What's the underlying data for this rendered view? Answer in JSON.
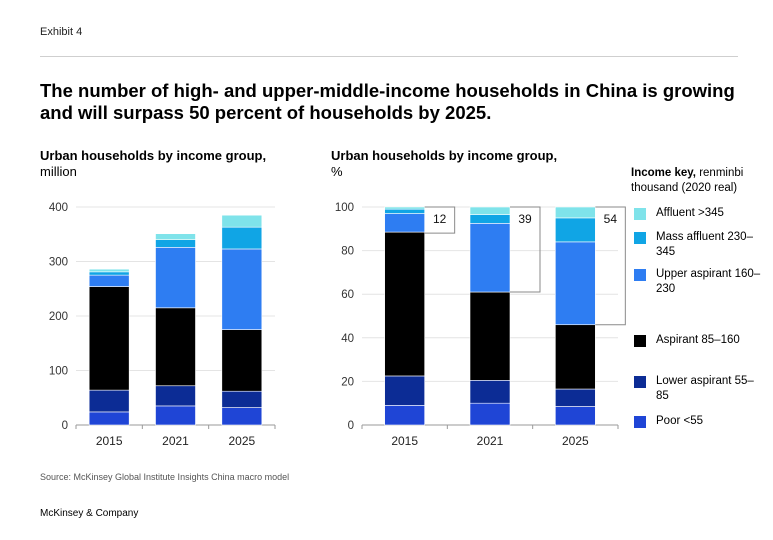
{
  "exhibit_label": "Exhibit 4",
  "headline": "The number of high- and upper-middle-income households in China is growing and will surpass 50 percent of households by 2025.",
  "left_chart_title_bold": "Urban households by income group,",
  "left_chart_title_unit": "million",
  "right_chart_title_bold": "Urban households by income group,",
  "right_chart_title_unit": "%",
  "legend": {
    "title_bold": "Income key,",
    "title_rest": "renminbi thousand (2020 real)",
    "items": [
      {
        "key": "affluent",
        "label": "Affluent >345",
        "color": "#7fe3ea"
      },
      {
        "key": "mass_affluent",
        "label": "Mass affluent 230–345",
        "color": "#10a5e5"
      },
      {
        "key": "upper_aspirant",
        "label": "Upper aspirant 160–230",
        "color": "#2e7df2"
      },
      {
        "key": "aspirant",
        "label": "Aspirant 85–160",
        "color": "#000000"
      },
      {
        "key": "lower_aspirant",
        "label": "Lower aspirant 55–85",
        "color": "#0c2c95"
      },
      {
        "key": "poor",
        "label": "Poor <55",
        "color": "#1f45d6"
      }
    ]
  },
  "chart_data": [
    {
      "type": "bar",
      "stacked": true,
      "title": "Urban households by income group, million",
      "categories": [
        "2015",
        "2021",
        "2025"
      ],
      "ylim": [
        0,
        400
      ],
      "yticks": [
        0,
        100,
        200,
        300,
        400
      ],
      "series": [
        {
          "name": "Poor <55",
          "values": [
            24,
            35,
            32
          ]
        },
        {
          "name": "Lower aspirant 55–85",
          "values": [
            40,
            37,
            30
          ]
        },
        {
          "name": "Aspirant 85–160",
          "values": [
            190,
            143,
            113
          ]
        },
        {
          "name": "Upper aspirant 160–230",
          "values": [
            21,
            111,
            148
          ]
        },
        {
          "name": "Mass affluent 230–345",
          "values": [
            6,
            14,
            40
          ]
        },
        {
          "name": "Affluent >345",
          "values": [
            5,
            11,
            22
          ]
        }
      ]
    },
    {
      "type": "bar",
      "stacked": true,
      "title": "Urban households by income group, %",
      "categories": [
        "2015",
        "2021",
        "2025"
      ],
      "ylim": [
        0,
        100
      ],
      "yticks": [
        0,
        20,
        40,
        60,
        80,
        100
      ],
      "series": [
        {
          "name": "Poor <55",
          "values": [
            9,
            10,
            8.5
          ]
        },
        {
          "name": "Lower aspirant 55–85",
          "values": [
            13.5,
            10.5,
            8
          ]
        },
        {
          "name": "Aspirant 85–160",
          "values": [
            66,
            40.5,
            29.5
          ]
        },
        {
          "name": "Upper aspirant 160–230",
          "values": [
            8.5,
            31.5,
            38
          ]
        },
        {
          "name": "Mass affluent 230–345",
          "values": [
            2,
            4,
            11
          ]
        },
        {
          "name": "Affluent >345",
          "values": [
            1,
            3.5,
            5
          ]
        }
      ],
      "annotations": [
        {
          "category": "2015",
          "label": "12",
          "from": 88,
          "to": 100
        },
        {
          "category": "2021",
          "label": "39",
          "from": 61,
          "to": 100
        },
        {
          "category": "2025",
          "label": "54",
          "from": 46,
          "to": 100
        }
      ]
    }
  ],
  "source": "Source: McKinsey Global Institute Insights China macro model",
  "brand": "McKinsey & Company"
}
